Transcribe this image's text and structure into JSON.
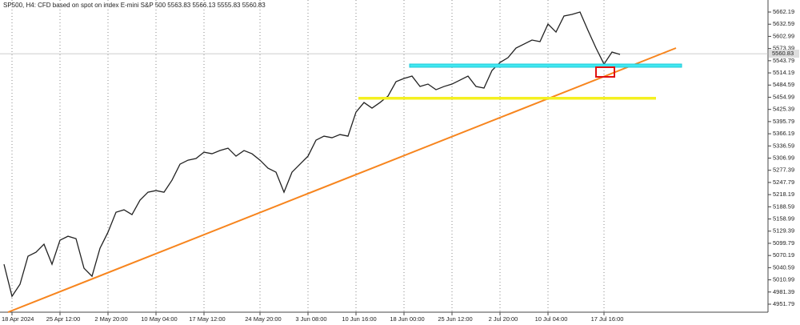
{
  "chart_data": {
    "type": "line",
    "title": "SP500, H4:  CFD based on spot on index E-mini S&P 500  5563.83 5566.13 5555.83 5560.83",
    "categories": [
      null,
      "18 Apr 2024",
      null,
      null,
      null,
      null,
      null,
      "25 Apr 12:00",
      null,
      null,
      null,
      null,
      null,
      "2 May 20:00",
      null,
      null,
      null,
      null,
      null,
      "10 May 04:00",
      null,
      null,
      null,
      null,
      null,
      "17 May 12:00",
      null,
      null,
      null,
      null,
      null,
      null,
      "24 May 20:00",
      null,
      null,
      null,
      null,
      null,
      "3 Jun 08:00",
      null,
      null,
      null,
      null,
      null,
      "10 Jun 16:00",
      null,
      null,
      null,
      null,
      null,
      "18 Jun 00:00",
      null,
      null,
      null,
      null,
      null,
      "25 Jun 12:00",
      null,
      null,
      null,
      null,
      null,
      "2 Jul 20:00",
      null,
      null,
      null,
      null,
      null,
      "10 Jul 04:00",
      null,
      null,
      null,
      null,
      null,
      null,
      "17 Jul 16:00",
      null,
      null
    ],
    "series": [
      {
        "color": "#222222",
        "values": [
          5048.9,
          4971.0,
          5000.2,
          5068.4,
          5078.1,
          5097.6,
          5048.9,
          5107.3,
          5117.0,
          5111.2,
          5039.2,
          5019.7,
          5087.8,
          5126.8,
          5175.4,
          5181.3,
          5169.6,
          5204.7,
          5224.1,
          5228.0,
          5224.1,
          5253.3,
          5292.3,
          5302.0,
          5305.9,
          5321.5,
          5317.6,
          5325.4,
          5331.2,
          5311.7,
          5325.4,
          5317.6,
          5302.0,
          5282.5,
          5272.8,
          5224.1,
          5272.8,
          5292.3,
          5311.7,
          5350.7,
          5360.4,
          5356.5,
          5364.3,
          5360.4,
          5418.8,
          5442.2,
          5428.6,
          5442.2,
          5457.8,
          5492.8,
          5500.6,
          5506.4,
          5481.1,
          5487.0,
          5473.3,
          5481.1,
          5487.0,
          5496.7,
          5506.4,
          5481.1,
          5477.2,
          5520.1,
          5539.5,
          5551.2,
          5574.6,
          5584.3,
          5594.1,
          5590.2,
          5633.0,
          5613.5,
          5652.5,
          5656.4,
          5662.2,
          5617.4,
          5574.6,
          5535.6,
          5564.8,
          5559.0
        ]
      }
    ],
    "last_price": 5560.83,
    "ylim": [
      4936.2,
      5681.7
    ],
    "yticks": [
      4951.79,
      4981.39,
      5010.99,
      5040.59,
      5070.19,
      5099.79,
      5129.39,
      5158.99,
      5188.59,
      5218.19,
      5247.79,
      5277.39,
      5306.99,
      5336.59,
      5366.19,
      5395.79,
      5425.39,
      5454.99,
      5484.59,
      5514.19,
      5543.79,
      5573.39,
      5602.99,
      5632.59,
      5662.19
    ],
    "grid": true
  }
}
